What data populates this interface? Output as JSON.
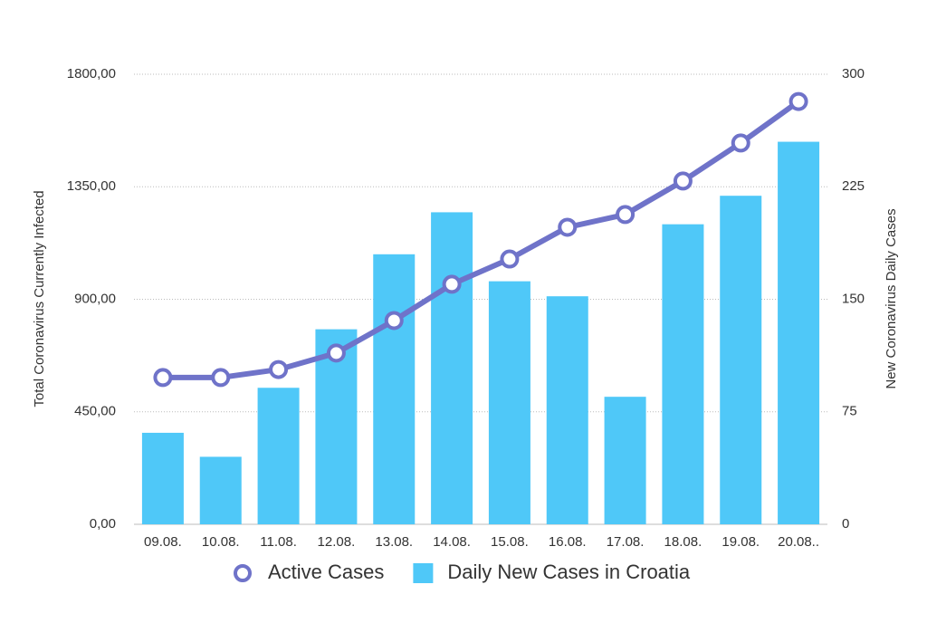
{
  "chart_data": {
    "type": "combo",
    "categories": [
      "09.08.",
      "10.08.",
      "11.08.",
      "12.08.",
      "13.08.",
      "14.08.",
      "15.08.",
      "16.08.",
      "17.08.",
      "18.08.",
      "19.08.",
      "20.08.."
    ],
    "y_label": "Total Coronavirus Currently Infected",
    "y2_label": "New Coronavirus Daily Cases",
    "ylim": [
      0,
      1800
    ],
    "yticks": [
      {
        "value": 0,
        "label": "0,00"
      },
      {
        "value": 450,
        "label": "450,00"
      },
      {
        "value": 900,
        "label": "900,00"
      },
      {
        "value": 1350,
        "label": "1350,00"
      },
      {
        "value": 1800,
        "label": "1800,00"
      }
    ],
    "y2lim": [
      0,
      300
    ],
    "y2ticks": [
      0,
      75,
      150,
      225,
      300
    ],
    "grid": true,
    "legend": "bottom",
    "series": [
      {
        "name": "Active Cases",
        "type": "line",
        "axis": "y",
        "color": "#6f73c9",
        "values": [
          587,
          587,
          619,
          685,
          815,
          960,
          1061,
          1188,
          1239,
          1373,
          1525,
          1691
        ]
      },
      {
        "name": "Daily New Cases in Croatia",
        "type": "bar",
        "axis": "y2",
        "color": "#4fc8f8",
        "values": [
          61,
          45,
          91,
          130,
          180,
          208,
          162,
          152,
          85,
          200,
          219,
          255
        ]
      }
    ]
  }
}
